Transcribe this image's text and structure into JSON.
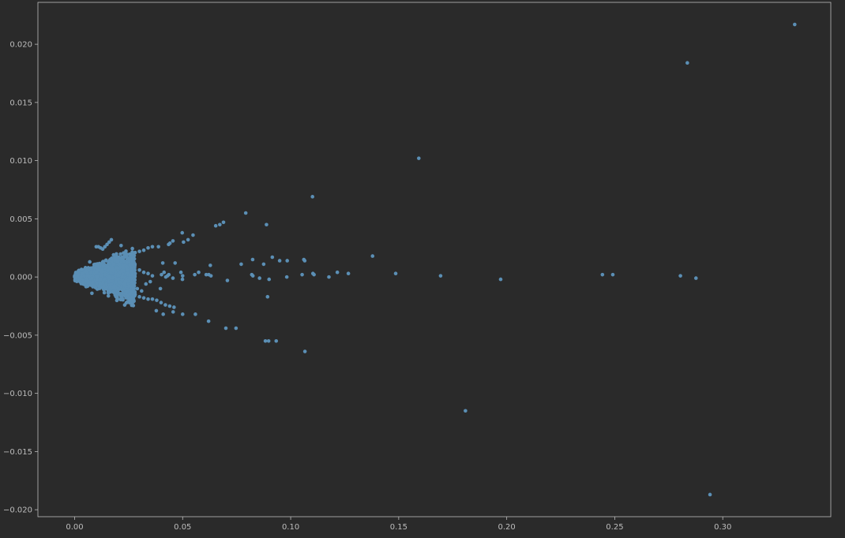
{
  "chart_data": {
    "type": "scatter",
    "title": "",
    "xlabel": "",
    "ylabel": "",
    "xlim": [
      -0.017,
      0.35
    ],
    "ylim": [
      -0.0206,
      0.0236
    ],
    "x_ticks": [
      0.0,
      0.05,
      0.1,
      0.15,
      0.2,
      0.25,
      0.3
    ],
    "x_tick_labels": [
      "0.00",
      "0.05",
      "0.10",
      "0.15",
      "0.20",
      "0.25",
      "0.30"
    ],
    "y_ticks": [
      -0.02,
      -0.015,
      -0.01,
      -0.005,
      0.0,
      0.005,
      0.01,
      0.015,
      0.02
    ],
    "y_tick_labels": [
      "−0.020",
      "−0.015",
      "−0.010",
      "−0.005",
      "0.000",
      "0.005",
      "0.010",
      "0.015",
      "0.020"
    ],
    "grid": false,
    "legend": false,
    "series": [
      {
        "points": [
          [
            0.3333,
            0.0217
          ],
          [
            0.2836,
            0.0184
          ],
          [
            0.1593,
            0.0102
          ],
          [
            0.1101,
            0.0069
          ],
          [
            0.2941,
            -0.0187
          ],
          [
            0.1809,
            -0.0115
          ],
          [
            0.1066,
            -0.0064
          ],
          [
            0.2804,
            0.0001
          ],
          [
            0.2876,
            -0.0001
          ],
          [
            0.2491,
            0.0002
          ],
          [
            0.2443,
            0.0002
          ],
          [
            0.1972,
            -0.0002
          ],
          [
            0.1694,
            0.0001
          ],
          [
            0.1486,
            0.0003
          ],
          [
            0.1379,
            0.0018
          ],
          [
            0.1267,
            0.0003
          ],
          [
            0.1216,
            0.0004
          ],
          [
            0.1177,
            0.0
          ],
          [
            0.1108,
            0.0002
          ],
          [
            0.1103,
            0.0003
          ],
          [
            0.1053,
            0.0002
          ],
          [
            0.1061,
            0.0015
          ],
          [
            0.1065,
            0.0014
          ],
          [
            0.0984,
            0.0014
          ],
          [
            0.0982,
            0.0
          ],
          [
            0.0949,
            0.0014
          ],
          [
            0.0915,
            0.0017
          ],
          [
            0.09,
            -0.0002
          ],
          [
            0.0893,
            -0.0017
          ],
          [
            0.0875,
            0.0011
          ],
          [
            0.0856,
            -0.0001
          ],
          [
            0.0824,
            0.0015
          ],
          [
            0.082,
            0.0002
          ],
          [
            0.0825,
            0.0001
          ],
          [
            0.0771,
            0.0011
          ],
          [
            0.0792,
            0.0055
          ],
          [
            0.0888,
            0.0045
          ],
          [
            0.0689,
            0.0047
          ],
          [
            0.0672,
            0.0045
          ],
          [
            0.0653,
            0.0044
          ],
          [
            0.0707,
            -0.0003
          ],
          [
            0.0631,
            0.0001
          ],
          [
            0.0621,
            0.0002
          ],
          [
            0.0628,
            0.001
          ],
          [
            0.0609,
            0.0002
          ],
          [
            0.0574,
            0.0004
          ],
          [
            0.0556,
            0.0002
          ],
          [
            0.0548,
            0.0036
          ],
          [
            0.0525,
            0.0032
          ],
          [
            0.0498,
            0.0038
          ],
          [
            0.0504,
            0.003
          ],
          [
            0.0455,
            0.0031
          ],
          [
            0.0441,
            0.0029
          ],
          [
            0.0435,
            0.0028
          ],
          [
            0.0499,
            -0.0002
          ],
          [
            0.0465,
            0.0012
          ],
          [
            0.0455,
            -0.0001
          ],
          [
            0.0436,
            0.0002
          ],
          [
            0.043,
            0.0001
          ],
          [
            0.0422,
            0.0
          ],
          [
            0.0414,
            0.0004
          ],
          [
            0.0408,
            0.0012
          ],
          [
            0.0402,
            0.0002
          ],
          [
            0.0397,
            -0.001
          ],
          [
            0.05,
            0.0001
          ],
          [
            0.0492,
            0.0004
          ],
          [
            0.0883,
            -0.0055
          ],
          [
            0.0898,
            -0.0055
          ],
          [
            0.0933,
            -0.0055
          ],
          [
            0.0747,
            -0.0044
          ],
          [
            0.07,
            -0.0044
          ],
          [
            0.062,
            -0.0038
          ],
          [
            0.0559,
            -0.0032
          ],
          [
            0.05,
            -0.0032
          ],
          [
            0.0456,
            -0.003
          ],
          [
            0.041,
            -0.0032
          ],
          [
            0.0378,
            -0.0029
          ],
          [
            0.046,
            -0.0026
          ],
          [
            0.044,
            -0.0025
          ],
          [
            0.042,
            -0.0024
          ],
          [
            0.04,
            -0.0022
          ],
          [
            0.038,
            -0.002
          ],
          [
            0.036,
            -0.0019
          ],
          [
            0.034,
            -0.0019
          ],
          [
            0.032,
            -0.0018
          ],
          [
            0.03,
            -0.0017
          ],
          [
            0.028,
            -0.0015
          ],
          [
            0.026,
            -0.0013
          ],
          [
            0.024,
            -0.0012
          ],
          [
            0.022,
            -0.0011
          ],
          [
            0.02,
            -0.001
          ],
          [
            0.018,
            -0.0009
          ],
          [
            0.0388,
            0.0026
          ],
          [
            0.036,
            0.0026
          ],
          [
            0.034,
            0.0025
          ],
          [
            0.032,
            0.0023
          ],
          [
            0.03,
            0.0022
          ],
          [
            0.028,
            0.0021
          ],
          [
            0.026,
            0.0019
          ],
          [
            0.024,
            0.0018
          ],
          [
            0.022,
            0.0017
          ],
          [
            0.02,
            0.0017
          ],
          [
            0.018,
            0.0019
          ],
          [
            0.017,
            0.0032
          ],
          [
            0.016,
            0.003
          ],
          [
            0.015,
            0.0028
          ],
          [
            0.014,
            0.0026
          ],
          [
            0.013,
            0.0024
          ],
          [
            0.012,
            0.0025
          ],
          [
            0.011,
            0.0026
          ],
          [
            0.01,
            0.0026
          ],
          [
            0.0215,
            0.0027
          ],
          [
            0.0135,
            -0.0008
          ],
          [
            0.008,
            -0.0014
          ],
          [
            0.006,
            -0.0008
          ],
          [
            0.004,
            -0.0004
          ],
          [
            0.003,
            0.0
          ],
          [
            0.0035,
            0.0003
          ],
          [
            0.005,
            0.0008
          ],
          [
            0.007,
            0.0013
          ],
          [
            0.03,
            0.0006
          ],
          [
            0.032,
            0.0004
          ],
          [
            0.034,
            0.0003
          ],
          [
            0.028,
            0.0003
          ],
          [
            0.026,
            0.0005
          ],
          [
            0.033,
            -0.0006
          ],
          [
            0.035,
            -0.0004
          ],
          [
            0.036,
            0.0001
          ],
          [
            0.029,
            -0.001
          ],
          [
            0.031,
            -0.0012
          ],
          [
            0.025,
            -0.0008
          ],
          [
            0.027,
            0.0011
          ],
          [
            0.024,
            0.0009
          ],
          [
            0.023,
            -0.0006
          ],
          [
            0.021,
            0.0004
          ],
          [
            0.019,
            -0.0004
          ],
          [
            0.022,
            0.0
          ],
          [
            0.02,
            0.0002
          ],
          [
            0.018,
            0.0005
          ],
          [
            0.016,
            0.0
          ],
          [
            0.014,
            0.0002
          ],
          [
            0.012,
            -0.0002
          ],
          [
            0.01,
            0.0004
          ],
          [
            0.008,
            -0.0001
          ]
        ]
      }
    ],
    "cluster": {
      "count": 1400,
      "x_range": [
        0.0,
        0.028
      ],
      "seed": 7
    }
  },
  "colors": {
    "background": "#2a2a2a",
    "axes": "#2a2a2a",
    "spine": "#bcbcbc",
    "tick_label": "#bdbdbd",
    "marker": "#5b8fb5"
  }
}
